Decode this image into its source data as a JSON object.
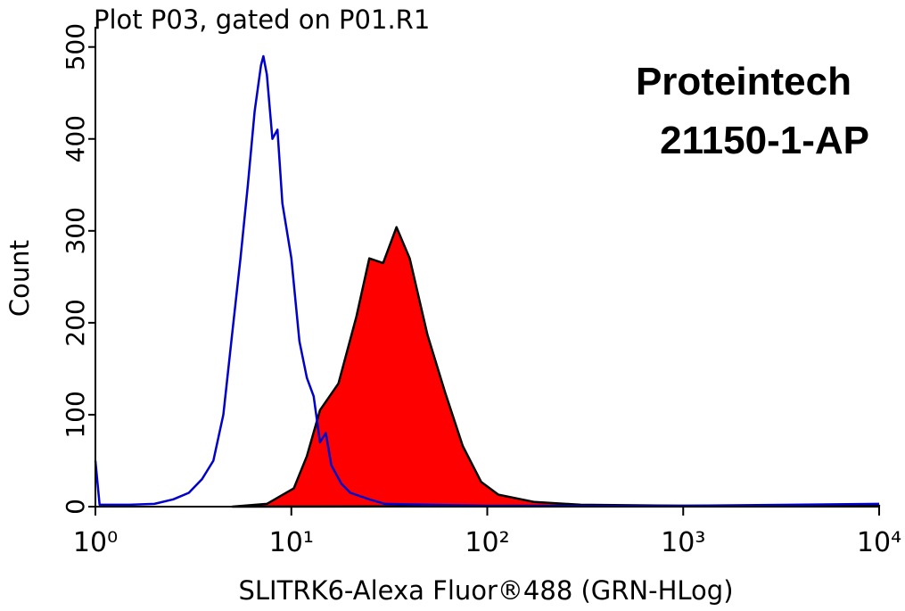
{
  "chart_data": {
    "type": "histogram-overlay",
    "title": "Plot P03, gated on P01.R1",
    "xlabel": "SLITRK6-Alexa Fluor®488 (GRN-HLog)",
    "ylabel": "Count",
    "annotations": [
      "Proteintech",
      "21150-1-AP"
    ],
    "xscale": "log",
    "xlim": [
      1,
      10000
    ],
    "xticks": [
      {
        "value": 1,
        "label": "10⁰"
      },
      {
        "value": 10,
        "label": "10¹"
      },
      {
        "value": 100,
        "label": "10²"
      },
      {
        "value": 1000,
        "label": "10³"
      },
      {
        "value": 10000,
        "label": "10⁴"
      }
    ],
    "ylim": [
      0,
      522
    ],
    "yticks": [
      0,
      100,
      200,
      300,
      400,
      500
    ],
    "series": [
      {
        "color": "#0000cc",
        "fill": null,
        "x": [
          1,
          1.05,
          1.5,
          2,
          2.5,
          3,
          3.5,
          4,
          4.5,
          5,
          5.5,
          6,
          6.5,
          7,
          7.2,
          7.5,
          8,
          8.5,
          9,
          10,
          11,
          12,
          13,
          14,
          15,
          16,
          18,
          20,
          25,
          30,
          50,
          100,
          1000,
          10000
        ],
        "values": [
          50,
          2,
          2,
          3,
          8,
          15,
          30,
          50,
          100,
          190,
          270,
          350,
          430,
          480,
          490,
          470,
          400,
          410,
          330,
          270,
          180,
          140,
          120,
          70,
          80,
          45,
          25,
          15,
          8,
          3,
          2,
          1,
          1,
          3
        ]
      },
      {
        "color": "#000000",
        "fill": "#ff0000",
        "x": [
          5,
          7.5,
          10.3,
          12,
          14,
          17.4,
          21.5,
          25,
          29.4,
          34.4,
          40.2,
          49.5,
          61,
          75,
          93,
          114,
          174,
          300,
          1000,
          10000
        ],
        "values": [
          0,
          3,
          20,
          55,
          105,
          134,
          207,
          270,
          265,
          304,
          270,
          187,
          124,
          66,
          27,
          13,
          5,
          2,
          1,
          1
        ]
      }
    ]
  }
}
